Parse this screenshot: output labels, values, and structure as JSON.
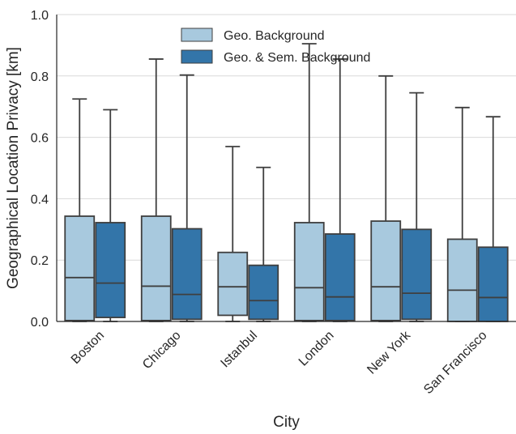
{
  "chart_data": {
    "type": "boxplot",
    "xlabel": "City",
    "ylabel": "Geographical Location Privacy [km]",
    "ylim": [
      0.0,
      1.0
    ],
    "yticks": [
      "0.0",
      "0.2",
      "0.4",
      "0.6",
      "0.8",
      "1.0"
    ],
    "grid": true,
    "legend_position": "top-center",
    "categories": [
      "Boston",
      "Chicago",
      "Istanbul",
      "London",
      "New York",
      "San Francisco"
    ],
    "series": [
      {
        "name": "Geo. Background",
        "color": "#a8c9de",
        "boxes": [
          {
            "whislo": 0.0,
            "q1": 0.003,
            "med": 0.143,
            "q3": 0.343,
            "whishi": 0.725
          },
          {
            "whislo": 0.0,
            "q1": 0.003,
            "med": 0.115,
            "q3": 0.343,
            "whishi": 0.855
          },
          {
            "whislo": 0.0,
            "q1": 0.02,
            "med": 0.113,
            "q3": 0.225,
            "whishi": 0.57
          },
          {
            "whislo": 0.0,
            "q1": 0.003,
            "med": 0.11,
            "q3": 0.322,
            "whishi": 0.905
          },
          {
            "whislo": 0.0,
            "q1": 0.003,
            "med": 0.113,
            "q3": 0.327,
            "whishi": 0.8
          },
          {
            "whislo": 0.0,
            "q1": 0.0,
            "med": 0.102,
            "q3": 0.268,
            "whishi": 0.697
          }
        ]
      },
      {
        "name": "Geo. & Sem. Background",
        "color": "#3375a9",
        "boxes": [
          {
            "whislo": 0.0,
            "q1": 0.013,
            "med": 0.125,
            "q3": 0.322,
            "whishi": 0.69
          },
          {
            "whislo": 0.0,
            "q1": 0.007,
            "med": 0.088,
            "q3": 0.302,
            "whishi": 0.803
          },
          {
            "whislo": 0.0,
            "q1": 0.007,
            "med": 0.068,
            "q3": 0.183,
            "whishi": 0.502
          },
          {
            "whislo": 0.0,
            "q1": 0.003,
            "med": 0.08,
            "q3": 0.285,
            "whishi": 0.855
          },
          {
            "whislo": 0.0,
            "q1": 0.007,
            "med": 0.092,
            "q3": 0.3,
            "whishi": 0.745
          },
          {
            "whislo": 0.0,
            "q1": 0.0,
            "med": 0.078,
            "q3": 0.242,
            "whishi": 0.667
          }
        ]
      }
    ]
  }
}
